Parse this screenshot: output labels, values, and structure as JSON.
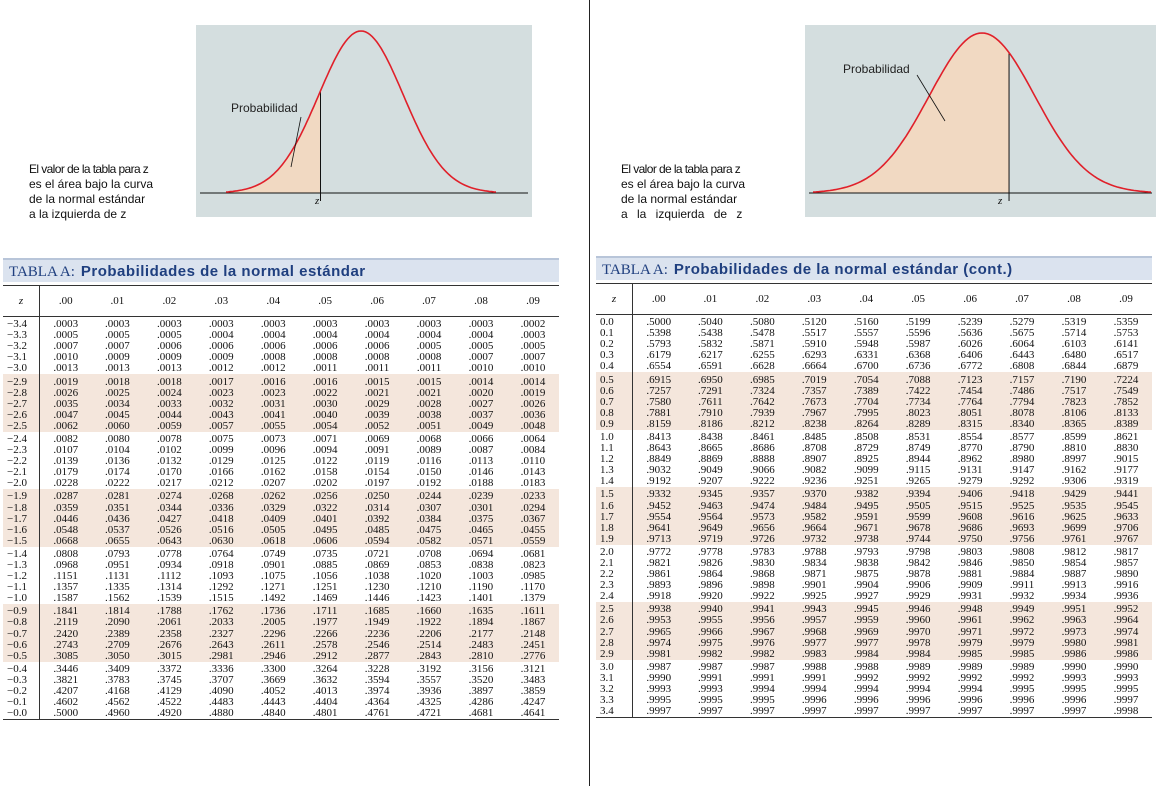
{
  "colors": {
    "curve": "#e0202a",
    "fill": "#f1d9c2",
    "plot_bg": "#d4dedf",
    "title_bar": "#dbe3ef",
    "title_text": "#1f3f7f",
    "shade": "#f4e6dc"
  },
  "left": {
    "desc": [
      "El valor de la tabla para z",
      "es el área bajo la curva",
      "de la normal estándar",
      "a la izquierda de z"
    ],
    "prob_label": "Probabilidad",
    "z_label": "z",
    "title_a": "TABLA A:",
    "title_b": "Probabilidades de la normal estándar",
    "header": [
      "z",
      ".00",
      ".01",
      ".02",
      ".03",
      ".04",
      ".05",
      ".06",
      ".07",
      ".08",
      ".09"
    ],
    "rows": [
      [
        "−3.4",
        ".0003",
        ".0003",
        ".0003",
        ".0003",
        ".0003",
        ".0003",
        ".0003",
        ".0003",
        ".0003",
        ".0002"
      ],
      [
        "−3.3",
        ".0005",
        ".0005",
        ".0005",
        ".0004",
        ".0004",
        ".0004",
        ".0004",
        ".0004",
        ".0004",
        ".0003"
      ],
      [
        "−3.2",
        ".0007",
        ".0007",
        ".0006",
        ".0006",
        ".0006",
        ".0006",
        ".0006",
        ".0005",
        ".0005",
        ".0005"
      ],
      [
        "−3.1",
        ".0010",
        ".0009",
        ".0009",
        ".0009",
        ".0008",
        ".0008",
        ".0008",
        ".0008",
        ".0007",
        ".0007"
      ],
      [
        "−3.0",
        ".0013",
        ".0013",
        ".0013",
        ".0012",
        ".0012",
        ".0011",
        ".0011",
        ".0011",
        ".0010",
        ".0010"
      ],
      [
        "−2.9",
        ".0019",
        ".0018",
        ".0018",
        ".0017",
        ".0016",
        ".0016",
        ".0015",
        ".0015",
        ".0014",
        ".0014"
      ],
      [
        "−2.8",
        ".0026",
        ".0025",
        ".0024",
        ".0023",
        ".0023",
        ".0022",
        ".0021",
        ".0021",
        ".0020",
        ".0019"
      ],
      [
        "−2.7",
        ".0035",
        ".0034",
        ".0033",
        ".0032",
        ".0031",
        ".0030",
        ".0029",
        ".0028",
        ".0027",
        ".0026"
      ],
      [
        "−2.6",
        ".0047",
        ".0045",
        ".0044",
        ".0043",
        ".0041",
        ".0040",
        ".0039",
        ".0038",
        ".0037",
        ".0036"
      ],
      [
        "−2.5",
        ".0062",
        ".0060",
        ".0059",
        ".0057",
        ".0055",
        ".0054",
        ".0052",
        ".0051",
        ".0049",
        ".0048"
      ],
      [
        "−2.4",
        ".0082",
        ".0080",
        ".0078",
        ".0075",
        ".0073",
        ".0071",
        ".0069",
        ".0068",
        ".0066",
        ".0064"
      ],
      [
        "−2.3",
        ".0107",
        ".0104",
        ".0102",
        ".0099",
        ".0096",
        ".0094",
        ".0091",
        ".0089",
        ".0087",
        ".0084"
      ],
      [
        "−2.2",
        ".0139",
        ".0136",
        ".0132",
        ".0129",
        ".0125",
        ".0122",
        ".0119",
        ".0116",
        ".0113",
        ".0110"
      ],
      [
        "−2.1",
        ".0179",
        ".0174",
        ".0170",
        ".0166",
        ".0162",
        ".0158",
        ".0154",
        ".0150",
        ".0146",
        ".0143"
      ],
      [
        "−2.0",
        ".0228",
        ".0222",
        ".0217",
        ".0212",
        ".0207",
        ".0202",
        ".0197",
        ".0192",
        ".0188",
        ".0183"
      ],
      [
        "−1.9",
        ".0287",
        ".0281",
        ".0274",
        ".0268",
        ".0262",
        ".0256",
        ".0250",
        ".0244",
        ".0239",
        ".0233"
      ],
      [
        "−1.8",
        ".0359",
        ".0351",
        ".0344",
        ".0336",
        ".0329",
        ".0322",
        ".0314",
        ".0307",
        ".0301",
        ".0294"
      ],
      [
        "−1.7",
        ".0446",
        ".0436",
        ".0427",
        ".0418",
        ".0409",
        ".0401",
        ".0392",
        ".0384",
        ".0375",
        ".0367"
      ],
      [
        "−1.6",
        ".0548",
        ".0537",
        ".0526",
        ".0516",
        ".0505",
        ".0495",
        ".0485",
        ".0475",
        ".0465",
        ".0455"
      ],
      [
        "−1.5",
        ".0668",
        ".0655",
        ".0643",
        ".0630",
        ".0618",
        ".0606",
        ".0594",
        ".0582",
        ".0571",
        ".0559"
      ],
      [
        "−1.4",
        ".0808",
        ".0793",
        ".0778",
        ".0764",
        ".0749",
        ".0735",
        ".0721",
        ".0708",
        ".0694",
        ".0681"
      ],
      [
        "−1.3",
        ".0968",
        ".0951",
        ".0934",
        ".0918",
        ".0901",
        ".0885",
        ".0869",
        ".0853",
        ".0838",
        ".0823"
      ],
      [
        "−1.2",
        ".1151",
        ".1131",
        ".1112",
        ".1093",
        ".1075",
        ".1056",
        ".1038",
        ".1020",
        ".1003",
        ".0985"
      ],
      [
        "−1.1",
        ".1357",
        ".1335",
        ".1314",
        ".1292",
        ".1271",
        ".1251",
        ".1230",
        ".1210",
        ".1190",
        ".1170"
      ],
      [
        "−1.0",
        ".1587",
        ".1562",
        ".1539",
        ".1515",
        ".1492",
        ".1469",
        ".1446",
        ".1423",
        ".1401",
        ".1379"
      ],
      [
        "−0.9",
        ".1841",
        ".1814",
        ".1788",
        ".1762",
        ".1736",
        ".1711",
        ".1685",
        ".1660",
        ".1635",
        ".1611"
      ],
      [
        "−0.8",
        ".2119",
        ".2090",
        ".2061",
        ".2033",
        ".2005",
        ".1977",
        ".1949",
        ".1922",
        ".1894",
        ".1867"
      ],
      [
        "−0.7",
        ".2420",
        ".2389",
        ".2358",
        ".2327",
        ".2296",
        ".2266",
        ".2236",
        ".2206",
        ".2177",
        ".2148"
      ],
      [
        "−0.6",
        ".2743",
        ".2709",
        ".2676",
        ".2643",
        ".2611",
        ".2578",
        ".2546",
        ".2514",
        ".2483",
        ".2451"
      ],
      [
        "−0.5",
        ".3085",
        ".3050",
        ".3015",
        ".2981",
        ".2946",
        ".2912",
        ".2877",
        ".2843",
        ".2810",
        ".2776"
      ],
      [
        "−0.4",
        ".3446",
        ".3409",
        ".3372",
        ".3336",
        ".3300",
        ".3264",
        ".3228",
        ".3192",
        ".3156",
        ".3121"
      ],
      [
        "−0.3",
        ".3821",
        ".3783",
        ".3745",
        ".3707",
        ".3669",
        ".3632",
        ".3594",
        ".3557",
        ".3520",
        ".3483"
      ],
      [
        "−0.2",
        ".4207",
        ".4168",
        ".4129",
        ".4090",
        ".4052",
        ".4013",
        ".3974",
        ".3936",
        ".3897",
        ".3859"
      ],
      [
        "−0.1",
        ".4602",
        ".4562",
        ".4522",
        ".4483",
        ".4443",
        ".4404",
        ".4364",
        ".4325",
        ".4286",
        ".4247"
      ],
      [
        "−0.0",
        ".5000",
        ".4960",
        ".4920",
        ".4880",
        ".4840",
        ".4801",
        ".4761",
        ".4721",
        ".4681",
        ".4641"
      ]
    ]
  },
  "right": {
    "desc": [
      "El valor de la tabla para z",
      "es el área bajo la curva",
      "de la normal estándar",
      "a la izquierda de z"
    ],
    "prob_label": "Probabilidad",
    "z_label": "z",
    "title_a": "TABLA A:",
    "title_b": "Probabilidades de la normal estándar (cont.)",
    "header": [
      "z",
      ".00",
      ".01",
      ".02",
      ".03",
      ".04",
      ".05",
      ".06",
      ".07",
      ".08",
      ".09"
    ],
    "rows": [
      [
        "0.0",
        ".5000",
        ".5040",
        ".5080",
        ".5120",
        ".5160",
        ".5199",
        ".5239",
        ".5279",
        ".5319",
        ".5359"
      ],
      [
        "0.1",
        ".5398",
        ".5438",
        ".5478",
        ".5517",
        ".5557",
        ".5596",
        ".5636",
        ".5675",
        ".5714",
        ".5753"
      ],
      [
        "0.2",
        ".5793",
        ".5832",
        ".5871",
        ".5910",
        ".5948",
        ".5987",
        ".6026",
        ".6064",
        ".6103",
        ".6141"
      ],
      [
        "0.3",
        ".6179",
        ".6217",
        ".6255",
        ".6293",
        ".6331",
        ".6368",
        ".6406",
        ".6443",
        ".6480",
        ".6517"
      ],
      [
        "0.4",
        ".6554",
        ".6591",
        ".6628",
        ".6664",
        ".6700",
        ".6736",
        ".6772",
        ".6808",
        ".6844",
        ".6879"
      ],
      [
        "0.5",
        ".6915",
        ".6950",
        ".6985",
        ".7019",
        ".7054",
        ".7088",
        ".7123",
        ".7157",
        ".7190",
        ".7224"
      ],
      [
        "0.6",
        ".7257",
        ".7291",
        ".7324",
        ".7357",
        ".7389",
        ".7422",
        ".7454",
        ".7486",
        ".7517",
        ".7549"
      ],
      [
        "0.7",
        ".7580",
        ".7611",
        ".7642",
        ".7673",
        ".7704",
        ".7734",
        ".7764",
        ".7794",
        ".7823",
        ".7852"
      ],
      [
        "0.8",
        ".7881",
        ".7910",
        ".7939",
        ".7967",
        ".7995",
        ".8023",
        ".8051",
        ".8078",
        ".8106",
        ".8133"
      ],
      [
        "0.9",
        ".8159",
        ".8186",
        ".8212",
        ".8238",
        ".8264",
        ".8289",
        ".8315",
        ".8340",
        ".8365",
        ".8389"
      ],
      [
        "1.0",
        ".8413",
        ".8438",
        ".8461",
        ".8485",
        ".8508",
        ".8531",
        ".8554",
        ".8577",
        ".8599",
        ".8621"
      ],
      [
        "1.1",
        ".8643",
        ".8665",
        ".8686",
        ".8708",
        ".8729",
        ".8749",
        ".8770",
        ".8790",
        ".8810",
        ".8830"
      ],
      [
        "1.2",
        ".8849",
        ".8869",
        ".8888",
        ".8907",
        ".8925",
        ".8944",
        ".8962",
        ".8980",
        ".8997",
        ".9015"
      ],
      [
        "1.3",
        ".9032",
        ".9049",
        ".9066",
        ".9082",
        ".9099",
        ".9115",
        ".9131",
        ".9147",
        ".9162",
        ".9177"
      ],
      [
        "1.4",
        ".9192",
        ".9207",
        ".9222",
        ".9236",
        ".9251",
        ".9265",
        ".9279",
        ".9292",
        ".9306",
        ".9319"
      ],
      [
        "1.5",
        ".9332",
        ".9345",
        ".9357",
        ".9370",
        ".9382",
        ".9394",
        ".9406",
        ".9418",
        ".9429",
        ".9441"
      ],
      [
        "1.6",
        ".9452",
        ".9463",
        ".9474",
        ".9484",
        ".9495",
        ".9505",
        ".9515",
        ".9525",
        ".9535",
        ".9545"
      ],
      [
        "1.7",
        ".9554",
        ".9564",
        ".9573",
        ".9582",
        ".9591",
        ".9599",
        ".9608",
        ".9616",
        ".9625",
        ".9633"
      ],
      [
        "1.8",
        ".9641",
        ".9649",
        ".9656",
        ".9664",
        ".9671",
        ".9678",
        ".9686",
        ".9693",
        ".9699",
        ".9706"
      ],
      [
        "1.9",
        ".9713",
        ".9719",
        ".9726",
        ".9732",
        ".9738",
        ".9744",
        ".9750",
        ".9756",
        ".9761",
        ".9767"
      ],
      [
        "2.0",
        ".9772",
        ".9778",
        ".9783",
        ".9788",
        ".9793",
        ".9798",
        ".9803",
        ".9808",
        ".9812",
        ".9817"
      ],
      [
        "2.1",
        ".9821",
        ".9826",
        ".9830",
        ".9834",
        ".9838",
        ".9842",
        ".9846",
        ".9850",
        ".9854",
        ".9857"
      ],
      [
        "2.2",
        ".9861",
        ".9864",
        ".9868",
        ".9871",
        ".9875",
        ".9878",
        ".9881",
        ".9884",
        ".9887",
        ".9890"
      ],
      [
        "2.3",
        ".9893",
        ".9896",
        ".9898",
        ".9901",
        ".9904",
        ".9906",
        ".9909",
        ".9911",
        ".9913",
        ".9916"
      ],
      [
        "2.4",
        ".9918",
        ".9920",
        ".9922",
        ".9925",
        ".9927",
        ".9929",
        ".9931",
        ".9932",
        ".9934",
        ".9936"
      ],
      [
        "2.5",
        ".9938",
        ".9940",
        ".9941",
        ".9943",
        ".9945",
        ".9946",
        ".9948",
        ".9949",
        ".9951",
        ".9952"
      ],
      [
        "2.6",
        ".9953",
        ".9955",
        ".9956",
        ".9957",
        ".9959",
        ".9960",
        ".9961",
        ".9962",
        ".9963",
        ".9964"
      ],
      [
        "2.7",
        ".9965",
        ".9966",
        ".9967",
        ".9968",
        ".9969",
        ".9970",
        ".9971",
        ".9972",
        ".9973",
        ".9974"
      ],
      [
        "2.8",
        ".9974",
        ".9975",
        ".9976",
        ".9977",
        ".9977",
        ".9978",
        ".9979",
        ".9979",
        ".9980",
        ".9981"
      ],
      [
        "2.9",
        ".9981",
        ".9982",
        ".9982",
        ".9983",
        ".9984",
        ".9984",
        ".9985",
        ".9985",
        ".9986",
        ".9986"
      ],
      [
        "3.0",
        ".9987",
        ".9987",
        ".9987",
        ".9988",
        ".9988",
        ".9989",
        ".9989",
        ".9989",
        ".9990",
        ".9990"
      ],
      [
        "3.1",
        ".9990",
        ".9991",
        ".9991",
        ".9991",
        ".9992",
        ".9992",
        ".9992",
        ".9992",
        ".9993",
        ".9993"
      ],
      [
        "3.2",
        ".9993",
        ".9993",
        ".9994",
        ".9994",
        ".9994",
        ".9994",
        ".9994",
        ".9995",
        ".9995",
        ".9995"
      ],
      [
        "3.3",
        ".9995",
        ".9995",
        ".9995",
        ".9996",
        ".9996",
        ".9996",
        ".9996",
        ".9996",
        ".9996",
        ".9997"
      ],
      [
        "3.4",
        ".9997",
        ".9997",
        ".9997",
        ".9997",
        ".9997",
        ".9997",
        ".9997",
        ".9997",
        ".9997",
        ".9998"
      ]
    ]
  }
}
